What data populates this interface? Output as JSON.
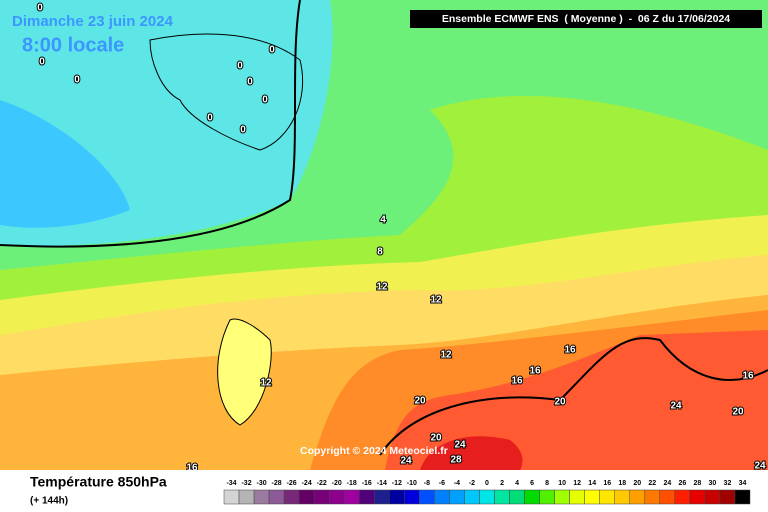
{
  "header": {
    "date": "Dimanche 23 juin 2024",
    "time": "8:00 locale",
    "model": "Ensemble ECMWF ENS  ( Moyenne )  -  06 Z du 17/06/2024"
  },
  "map": {
    "copyright": "Copyright © 2024 Meteociel.fr",
    "contour_labels": [
      0,
      0,
      0,
      0,
      0,
      0,
      0,
      0,
      0,
      4,
      8,
      12,
      12,
      12,
      16,
      16,
      16,
      12,
      20,
      20,
      16,
      24,
      20,
      20,
      24,
      28,
      24,
      24,
      16
    ]
  },
  "legend": {
    "title": "Température 850hPa",
    "subtitle": "(+ 144h)",
    "scale": [
      -34,
      -32,
      -30,
      -28,
      -26,
      -24,
      -22,
      -20,
      -18,
      -16,
      -14,
      -12,
      -10,
      -8,
      -6,
      -4,
      -2,
      0,
      2,
      4,
      6,
      8,
      10,
      12,
      14,
      16,
      18,
      20,
      22,
      24,
      26,
      28,
      30,
      32,
      34
    ],
    "colors": [
      "#d4d4d4",
      "#b4b4b4",
      "#9a7aa0",
      "#8c5a96",
      "#782878",
      "#640064",
      "#780078",
      "#8c008c",
      "#a000a0",
      "#500078",
      "#1e1e8c",
      "#0000a0",
      "#0000dc",
      "#0050ff",
      "#0080ff",
      "#00a0ff",
      "#00c8ff",
      "#00e6e6",
      "#00e6a0",
      "#00dc78",
      "#00dc00",
      "#50f000",
      "#a0ff00",
      "#e6ff00",
      "#ffff00",
      "#ffe600",
      "#ffc800",
      "#ffa000",
      "#ff7800",
      "#ff5000",
      "#ff1e00",
      "#e60000",
      "#c80000",
      "#a00000",
      "#000000"
    ]
  }
}
